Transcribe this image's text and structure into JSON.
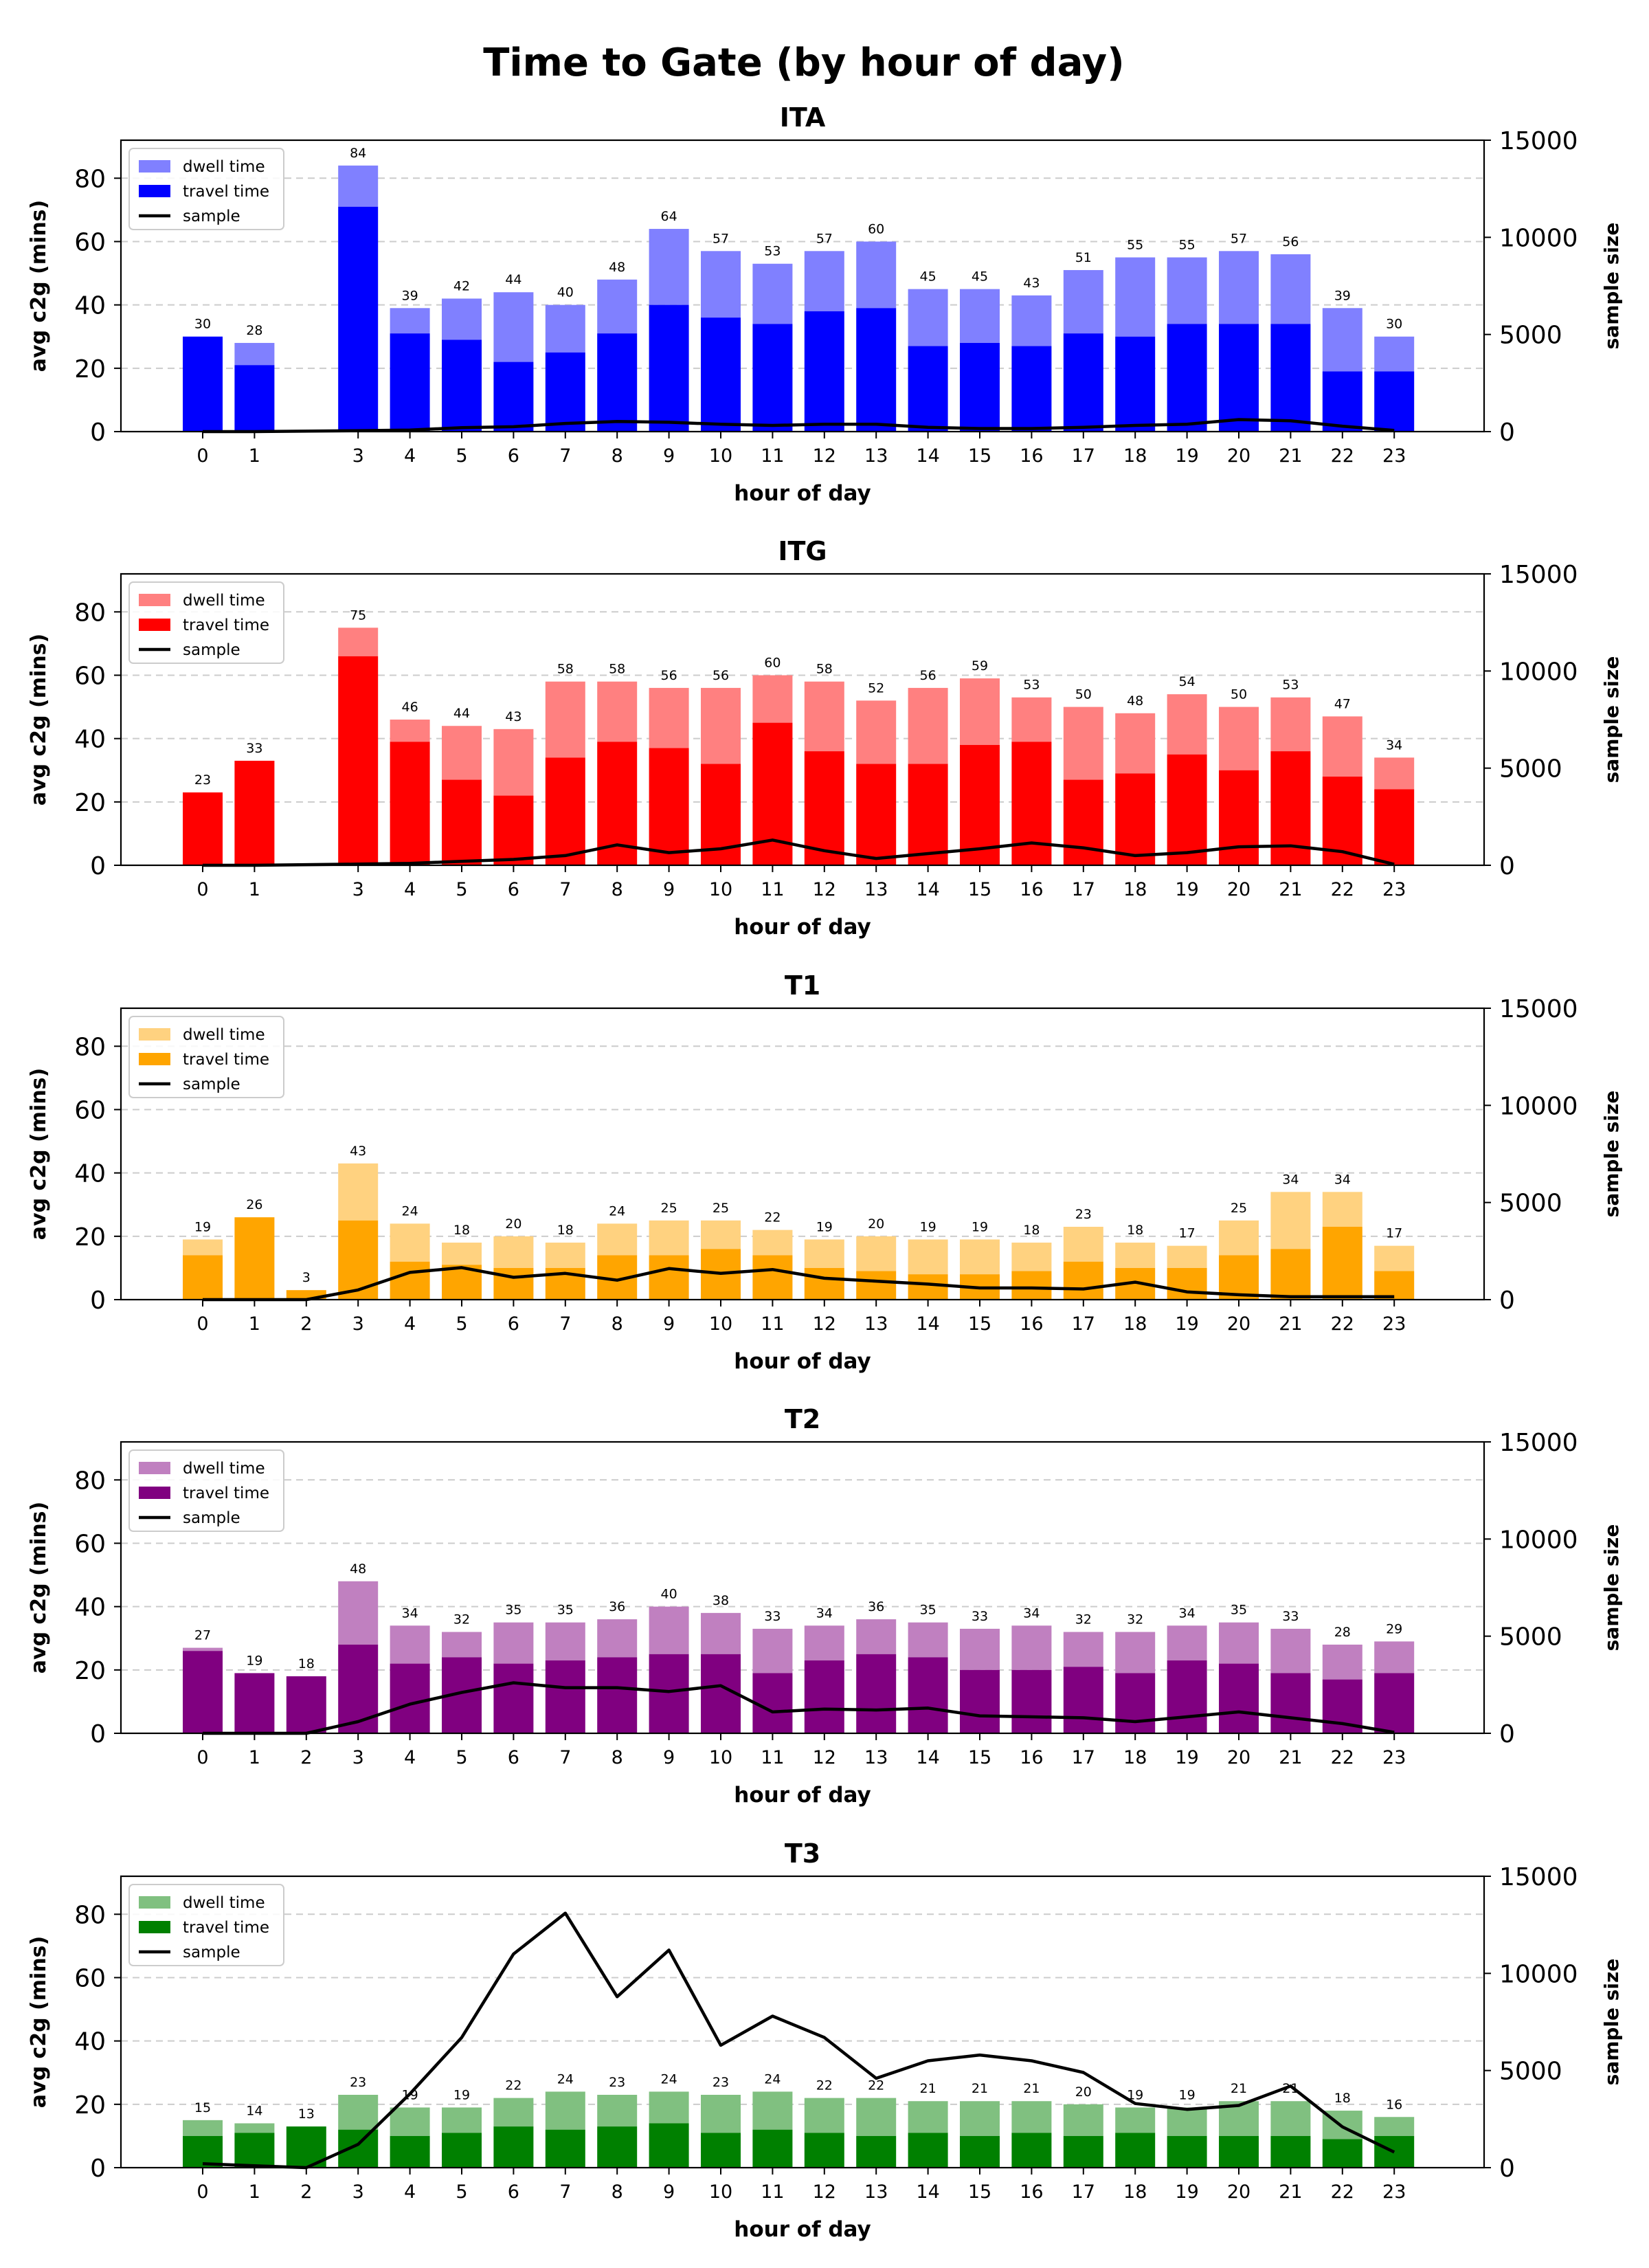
{
  "page_title": "Time to Gate (by hour of day)",
  "legend_labels": {
    "dwell": "dwell time",
    "travel": "travel time",
    "sample": "sample"
  },
  "chart_data": [
    {
      "type": "bar",
      "title": "ITA",
      "xlabel": "hour of day",
      "ylabel": "avg c2g (mins)",
      "y2label": "sample size",
      "ylim": [
        0,
        92
      ],
      "y2lim": [
        0,
        15000
      ],
      "yticks": [
        0,
        20,
        40,
        60,
        80
      ],
      "y2ticks": [
        0,
        5000,
        10000,
        15000
      ],
      "grid": "horizontal dashed",
      "legend": "top-left",
      "colors": {
        "travel": "#0000ff",
        "dwell": "#8080ff",
        "sample": "#000000"
      },
      "hours": [
        0,
        1,
        3,
        4,
        5,
        6,
        7,
        8,
        9,
        10,
        11,
        12,
        13,
        14,
        15,
        16,
        17,
        18,
        19,
        20,
        21,
        22,
        23
      ],
      "totals": [
        30,
        28,
        84,
        39,
        42,
        44,
        40,
        48,
        64,
        57,
        53,
        57,
        60,
        45,
        45,
        43,
        51,
        55,
        55,
        57,
        56,
        39,
        30
      ],
      "travel": [
        30,
        21,
        71,
        31,
        29,
        22,
        25,
        31,
        40,
        36,
        34,
        38,
        39,
        27,
        28,
        27,
        31,
        30,
        34,
        34,
        34,
        19,
        19
      ],
      "sample": [
        0,
        0,
        50,
        80,
        200,
        250,
        420,
        520,
        480,
        380,
        320,
        380,
        380,
        220,
        160,
        160,
        220,
        320,
        380,
        620,
        560,
        280,
        60
      ]
    },
    {
      "type": "bar",
      "title": "ITG",
      "xlabel": "hour of day",
      "ylabel": "avg c2g (mins)",
      "y2label": "sample size",
      "ylim": [
        0,
        92
      ],
      "y2lim": [
        0,
        15000
      ],
      "yticks": [
        0,
        20,
        40,
        60,
        80
      ],
      "y2ticks": [
        0,
        5000,
        10000,
        15000
      ],
      "grid": "horizontal dashed",
      "legend": "top-left",
      "colors": {
        "travel": "#ff0000",
        "dwell": "#ff8080",
        "sample": "#000000"
      },
      "hours": [
        0,
        1,
        3,
        4,
        5,
        6,
        7,
        8,
        9,
        10,
        11,
        12,
        13,
        14,
        15,
        16,
        17,
        18,
        19,
        20,
        21,
        22,
        23
      ],
      "totals": [
        23,
        33,
        75,
        46,
        44,
        43,
        58,
        58,
        56,
        56,
        60,
        58,
        52,
        56,
        59,
        53,
        50,
        48,
        54,
        50,
        53,
        47,
        34
      ],
      "travel": [
        23,
        33,
        66,
        39,
        27,
        22,
        34,
        39,
        37,
        32,
        45,
        36,
        32,
        32,
        38,
        39,
        27,
        29,
        35,
        30,
        36,
        28,
        24
      ],
      "sample": [
        0,
        0,
        60,
        100,
        200,
        300,
        500,
        1050,
        650,
        850,
        1300,
        750,
        350,
        600,
        850,
        1150,
        900,
        500,
        650,
        950,
        1000,
        700,
        50
      ]
    },
    {
      "type": "bar",
      "title": "T1",
      "xlabel": "hour of day",
      "ylabel": "avg c2g (mins)",
      "y2label": "sample size",
      "ylim": [
        0,
        92
      ],
      "y2lim": [
        0,
        15000
      ],
      "yticks": [
        0,
        20,
        40,
        60,
        80
      ],
      "y2ticks": [
        0,
        5000,
        10000,
        15000
      ],
      "grid": "horizontal dashed",
      "legend": "top-left",
      "colors": {
        "travel": "#ffa500",
        "dwell": "#ffd280",
        "sample": "#000000"
      },
      "hours": [
        0,
        1,
        2,
        3,
        4,
        5,
        6,
        7,
        8,
        9,
        10,
        11,
        12,
        13,
        14,
        15,
        16,
        17,
        18,
        19,
        20,
        21,
        22,
        23
      ],
      "totals": [
        19,
        26,
        3,
        43,
        24,
        18,
        20,
        18,
        24,
        25,
        25,
        22,
        19,
        20,
        19,
        19,
        18,
        23,
        18,
        17,
        25,
        34,
        34,
        17
      ],
      "travel": [
        14,
        26,
        3,
        25,
        12,
        11,
        10,
        10,
        14,
        14,
        16,
        14,
        10,
        9,
        8,
        8,
        9,
        12,
        10,
        10,
        14,
        16,
        23,
        9
      ],
      "sample": [
        0,
        0,
        0,
        500,
        1400,
        1650,
        1150,
        1350,
        1000,
        1600,
        1350,
        1550,
        1100,
        950,
        800,
        600,
        600,
        550,
        900,
        400,
        250,
        150,
        150,
        150
      ]
    },
    {
      "type": "bar",
      "title": "T2",
      "xlabel": "hour of day",
      "ylabel": "avg c2g (mins)",
      "y2label": "sample size",
      "ylim": [
        0,
        92
      ],
      "y2lim": [
        0,
        15000
      ],
      "yticks": [
        0,
        20,
        40,
        60,
        80
      ],
      "y2ticks": [
        0,
        5000,
        10000,
        15000
      ],
      "grid": "horizontal dashed",
      "legend": "top-left",
      "colors": {
        "travel": "#800080",
        "dwell": "#c080c0",
        "sample": "#000000"
      },
      "hours": [
        0,
        1,
        2,
        3,
        4,
        5,
        6,
        7,
        8,
        9,
        10,
        11,
        12,
        13,
        14,
        15,
        16,
        17,
        18,
        19,
        20,
        21,
        22,
        23
      ],
      "totals": [
        27,
        19,
        18,
        48,
        34,
        32,
        35,
        35,
        36,
        40,
        38,
        33,
        34,
        36,
        35,
        33,
        34,
        32,
        32,
        34,
        35,
        33,
        28,
        29
      ],
      "travel": [
        26,
        19,
        18,
        28,
        22,
        24,
        22,
        23,
        24,
        25,
        25,
        19,
        23,
        25,
        24,
        20,
        20,
        21,
        19,
        23,
        22,
        19,
        17,
        19
      ],
      "sample": [
        0,
        0,
        0,
        600,
        1500,
        2100,
        2600,
        2350,
        2350,
        2150,
        2450,
        1100,
        1250,
        1200,
        1300,
        900,
        850,
        800,
        600,
        850,
        1100,
        800,
        500,
        50
      ]
    },
    {
      "type": "bar",
      "title": "T3",
      "xlabel": "hour of day",
      "ylabel": "avg c2g (mins)",
      "y2label": "sample size",
      "ylim": [
        0,
        92
      ],
      "y2lim": [
        0,
        15000
      ],
      "yticks": [
        0,
        20,
        40,
        60,
        80
      ],
      "y2ticks": [
        0,
        5000,
        10000,
        15000
      ],
      "grid": "horizontal dashed",
      "legend": "top-left",
      "colors": {
        "travel": "#008000",
        "dwell": "#80c080",
        "sample": "#000000"
      },
      "hours": [
        0,
        1,
        2,
        3,
        4,
        5,
        6,
        7,
        8,
        9,
        10,
        11,
        12,
        13,
        14,
        15,
        16,
        17,
        18,
        19,
        20,
        21,
        22,
        23
      ],
      "totals": [
        15,
        14,
        13,
        23,
        19,
        19,
        22,
        24,
        23,
        24,
        23,
        24,
        22,
        22,
        21,
        21,
        21,
        20,
        19,
        19,
        21,
        21,
        18,
        16
      ],
      "travel": [
        10,
        11,
        13,
        12,
        10,
        11,
        13,
        12,
        13,
        14,
        11,
        12,
        11,
        10,
        11,
        10,
        11,
        10,
        11,
        10,
        10,
        10,
        9,
        10
      ],
      "sample": [
        200,
        100,
        0,
        1200,
        3800,
        6700,
        11000,
        13100,
        8800,
        11200,
        6300,
        7800,
        6700,
        4600,
        5500,
        5800,
        5500,
        4900,
        3300,
        3000,
        3200,
        4200,
        2100,
        800
      ]
    }
  ]
}
